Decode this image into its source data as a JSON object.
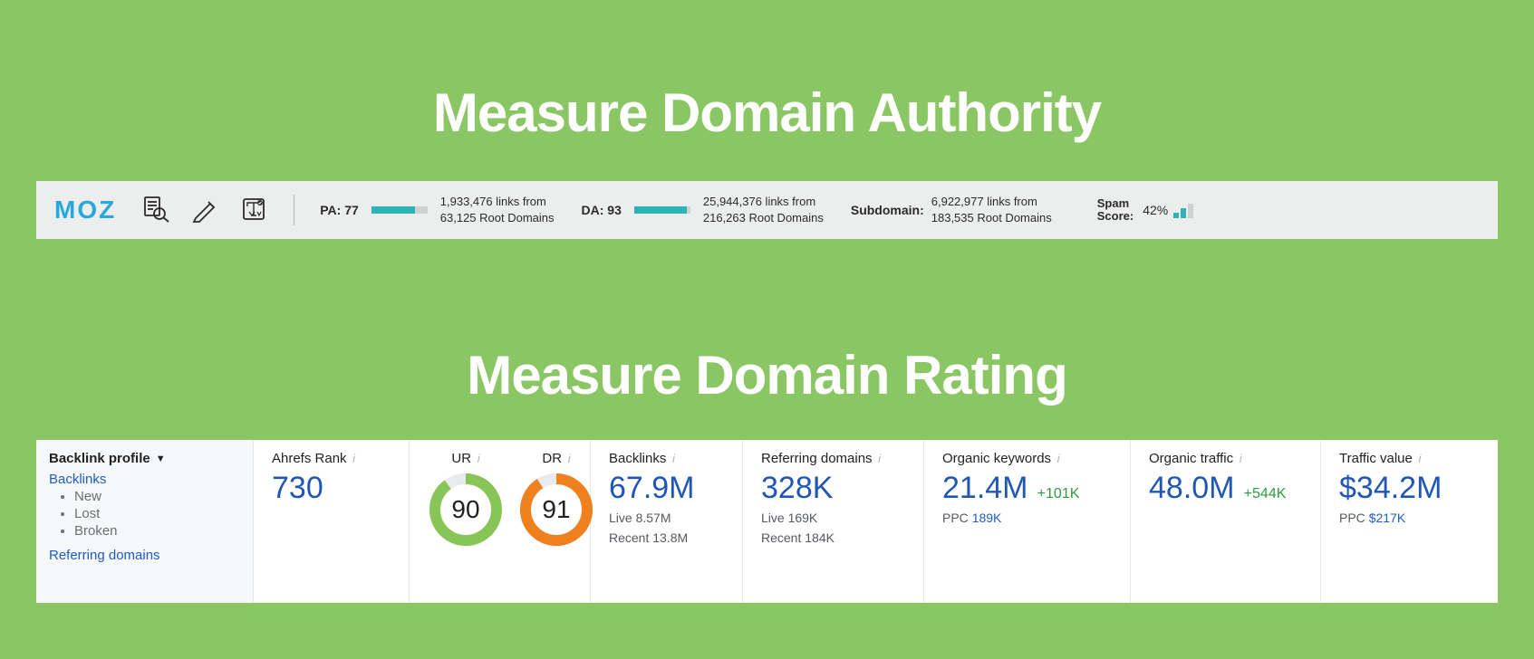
{
  "page": {
    "heading_authority": "Measure Domain Authority",
    "heading_rating": "Measure Domain Rating",
    "background_color": "#8ac764"
  },
  "moz": {
    "logo_text": "MOZ",
    "logo_color": "#29a8db",
    "bar_fill_color": "#2fb3b7",
    "bar_track_color": "#cfd1d1",
    "pa": {
      "label": "PA:",
      "value": "77",
      "fill_pct": 77,
      "links_line": "1,933,476 links from",
      "domains_line": "63,125 Root Domains"
    },
    "da": {
      "label": "DA:",
      "value": "93",
      "fill_pct": 93,
      "links_line": "25,944,376 links from",
      "domains_line": "216,263 Root Domains"
    },
    "subdomain": {
      "label": "Subdomain:",
      "links_line": "6,922,977 links from",
      "domains_line": "183,535 Root Domains"
    },
    "spam": {
      "label_line1": "Spam",
      "label_line2": "Score:",
      "value": "42%"
    }
  },
  "ahrefs": {
    "sidebar": {
      "title": "Backlink profile",
      "backlinks_label": "Backlinks",
      "sub_new": "New",
      "sub_lost": "Lost",
      "sub_broken": "Broken",
      "referring_domains_label": "Referring domains"
    },
    "rank": {
      "title": "Ahrefs Rank",
      "value": "730"
    },
    "ur": {
      "title": "UR",
      "value": 90,
      "color": "#87c556",
      "track_color": "#e9eaec"
    },
    "dr": {
      "title": "DR",
      "value": 91,
      "color": "#f07f1d",
      "track_color": "#e9eaec"
    },
    "backlinks": {
      "title": "Backlinks",
      "value": "67.9M",
      "live_label": "Live",
      "live_value": "8.57M",
      "recent_label": "Recent",
      "recent_value": "13.8M"
    },
    "referring": {
      "title": "Referring domains",
      "value": "328K",
      "live_label": "Live",
      "live_value": "169K",
      "recent_label": "Recent",
      "recent_value": "184K"
    },
    "organic_kw": {
      "title": "Organic keywords",
      "value": "21.4M",
      "delta": "+101K",
      "ppc_label": "PPC",
      "ppc_value": "189K"
    },
    "organic_traffic": {
      "title": "Organic traffic",
      "value": "48.0M",
      "delta": "+544K"
    },
    "traffic_value": {
      "title": "Traffic value",
      "value": "$34.2M",
      "ppc_label": "PPC",
      "ppc_value": "$217K"
    },
    "big_value_color": "#2056b5",
    "delta_color": "#2e9c3d"
  }
}
